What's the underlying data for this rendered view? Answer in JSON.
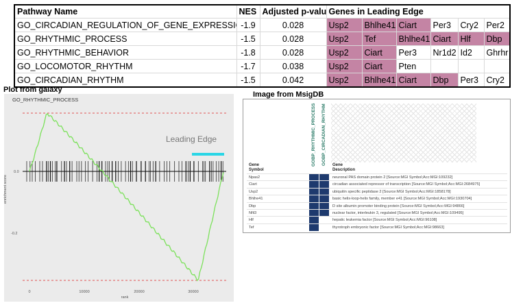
{
  "table": {
    "headers": [
      "Pathway Name",
      "NES",
      "Adjusted p-value",
      "Genes in Leading Edge"
    ],
    "rows": [
      {
        "pathway": "GO_CIRCADIAN_REGULATION_OF_GENE_EXPRESSION",
        "nes": "-1.9",
        "padj": "0.028",
        "genes": [
          "Usp2",
          "Bhlhe41",
          "Ciart",
          "Per3",
          "Cry2",
          "Per2"
        ],
        "hl": [
          true,
          true,
          true,
          false,
          false,
          false
        ]
      },
      {
        "pathway": "GO_RHYTHMIC_PROCESS",
        "nes": "-1.5",
        "padj": "0.028",
        "genes": [
          "Usp2",
          "Tef",
          "Bhlhe41",
          "Ciart",
          "Hlf",
          "Dbp"
        ],
        "hl": [
          true,
          true,
          true,
          true,
          true,
          true
        ]
      },
      {
        "pathway": "GO_RHYTHMIC_BEHAVIOR",
        "nes": "-1.8",
        "padj": "0.028",
        "genes": [
          "Usp2",
          "Ciart",
          "Per3",
          "Nr1d2",
          "Id2",
          "Ghrhr"
        ],
        "hl": [
          true,
          true,
          false,
          false,
          false,
          false
        ]
      },
      {
        "pathway": "GO_LOCOMOTOR_RHYTHM",
        "nes": "-1.7",
        "padj": "0.038",
        "genes": [
          "Usp2",
          "Ciart",
          "Pten",
          "",
          "",
          ""
        ],
        "hl": [
          true,
          true,
          false,
          false,
          false,
          false
        ]
      },
      {
        "pathway": "GO_CIRCADIAN_RHYTHM",
        "nes": "-1.5",
        "padj": "0.042",
        "genes": [
          "Usp2",
          "Bhlhe41",
          "Ciart",
          "Dbp",
          "Per3",
          "Cry2"
        ],
        "hl": [
          true,
          true,
          true,
          true,
          false,
          false
        ]
      }
    ]
  },
  "galaxy": {
    "section_title": "Plot from galaxy",
    "plot_title": "GO_RHYTHMIC_PROCESS",
    "ylabel": "enrichment score",
    "xlabel": "rank",
    "annotation": "Leading Edge",
    "colors": {
      "curve": "#7be15a",
      "dashed": "#e05050",
      "leading_edge_bar": "#29d6e6",
      "panel": "#ebebeb"
    },
    "chart_data": {
      "type": "line",
      "x_ticks": [
        "0",
        "10000",
        "20000",
        "30000"
      ],
      "y_ticks": [
        "0.0",
        "-0.2"
      ],
      "top_dashed_label": "",
      "max_es": 0.25,
      "min_es": -0.47
    }
  },
  "msig": {
    "section_title": "Image from MsigDB",
    "columns": [
      "GOBP_RHYTHMIC_PROCESS",
      "GOBP_CIRCADIAN_RHYTHM"
    ],
    "head_symbol": [
      "Gene",
      "Symbol"
    ],
    "head_desc": [
      "Gene",
      "Description"
    ],
    "rows": [
      {
        "symbol": "Npas2",
        "desc": "neuronal PAS domain protein 2 [Source:MGI Symbol;Acc:MGI:109232]",
        "c1": true,
        "c2": true
      },
      {
        "symbol": "Ciart",
        "desc": "circadian associated repressor of transcription [Source:MGI Symbol;Acc:MGI:2684975]",
        "c1": true,
        "c2": true
      },
      {
        "symbol": "Usp2",
        "desc": "ubiquitin specific peptidase 2 [Source:MGI Symbol;Acc:MGI:1858178]",
        "c1": true,
        "c2": true
      },
      {
        "symbol": "Bhlhe41",
        "desc": "basic helix-loop-helix family, member e41 [Source:MGI Symbol;Acc:MGI:1930704]",
        "c1": true,
        "c2": true
      },
      {
        "symbol": "Dbp",
        "desc": "D site albumin promoter binding protein [Source:MGI Symbol;Acc:MGI:94866]",
        "c1": true,
        "c2": true
      },
      {
        "symbol": "Nfil3",
        "desc": "nuclear factor, interleukin 3, regulated [Source:MGI Symbol;Acc:MGI:109495]",
        "c1": true,
        "c2": true
      },
      {
        "symbol": "Hlf",
        "desc": "hepatic leukemia factor [Source:MGI Symbol;Acc:MGI:96108]",
        "c1": true,
        "c2": false
      },
      {
        "symbol": "Tef",
        "desc": "thyrotroph embryonic factor [Source:MGI Symbol;Acc:MGI:98663]",
        "c1": true,
        "c2": false
      }
    ]
  }
}
